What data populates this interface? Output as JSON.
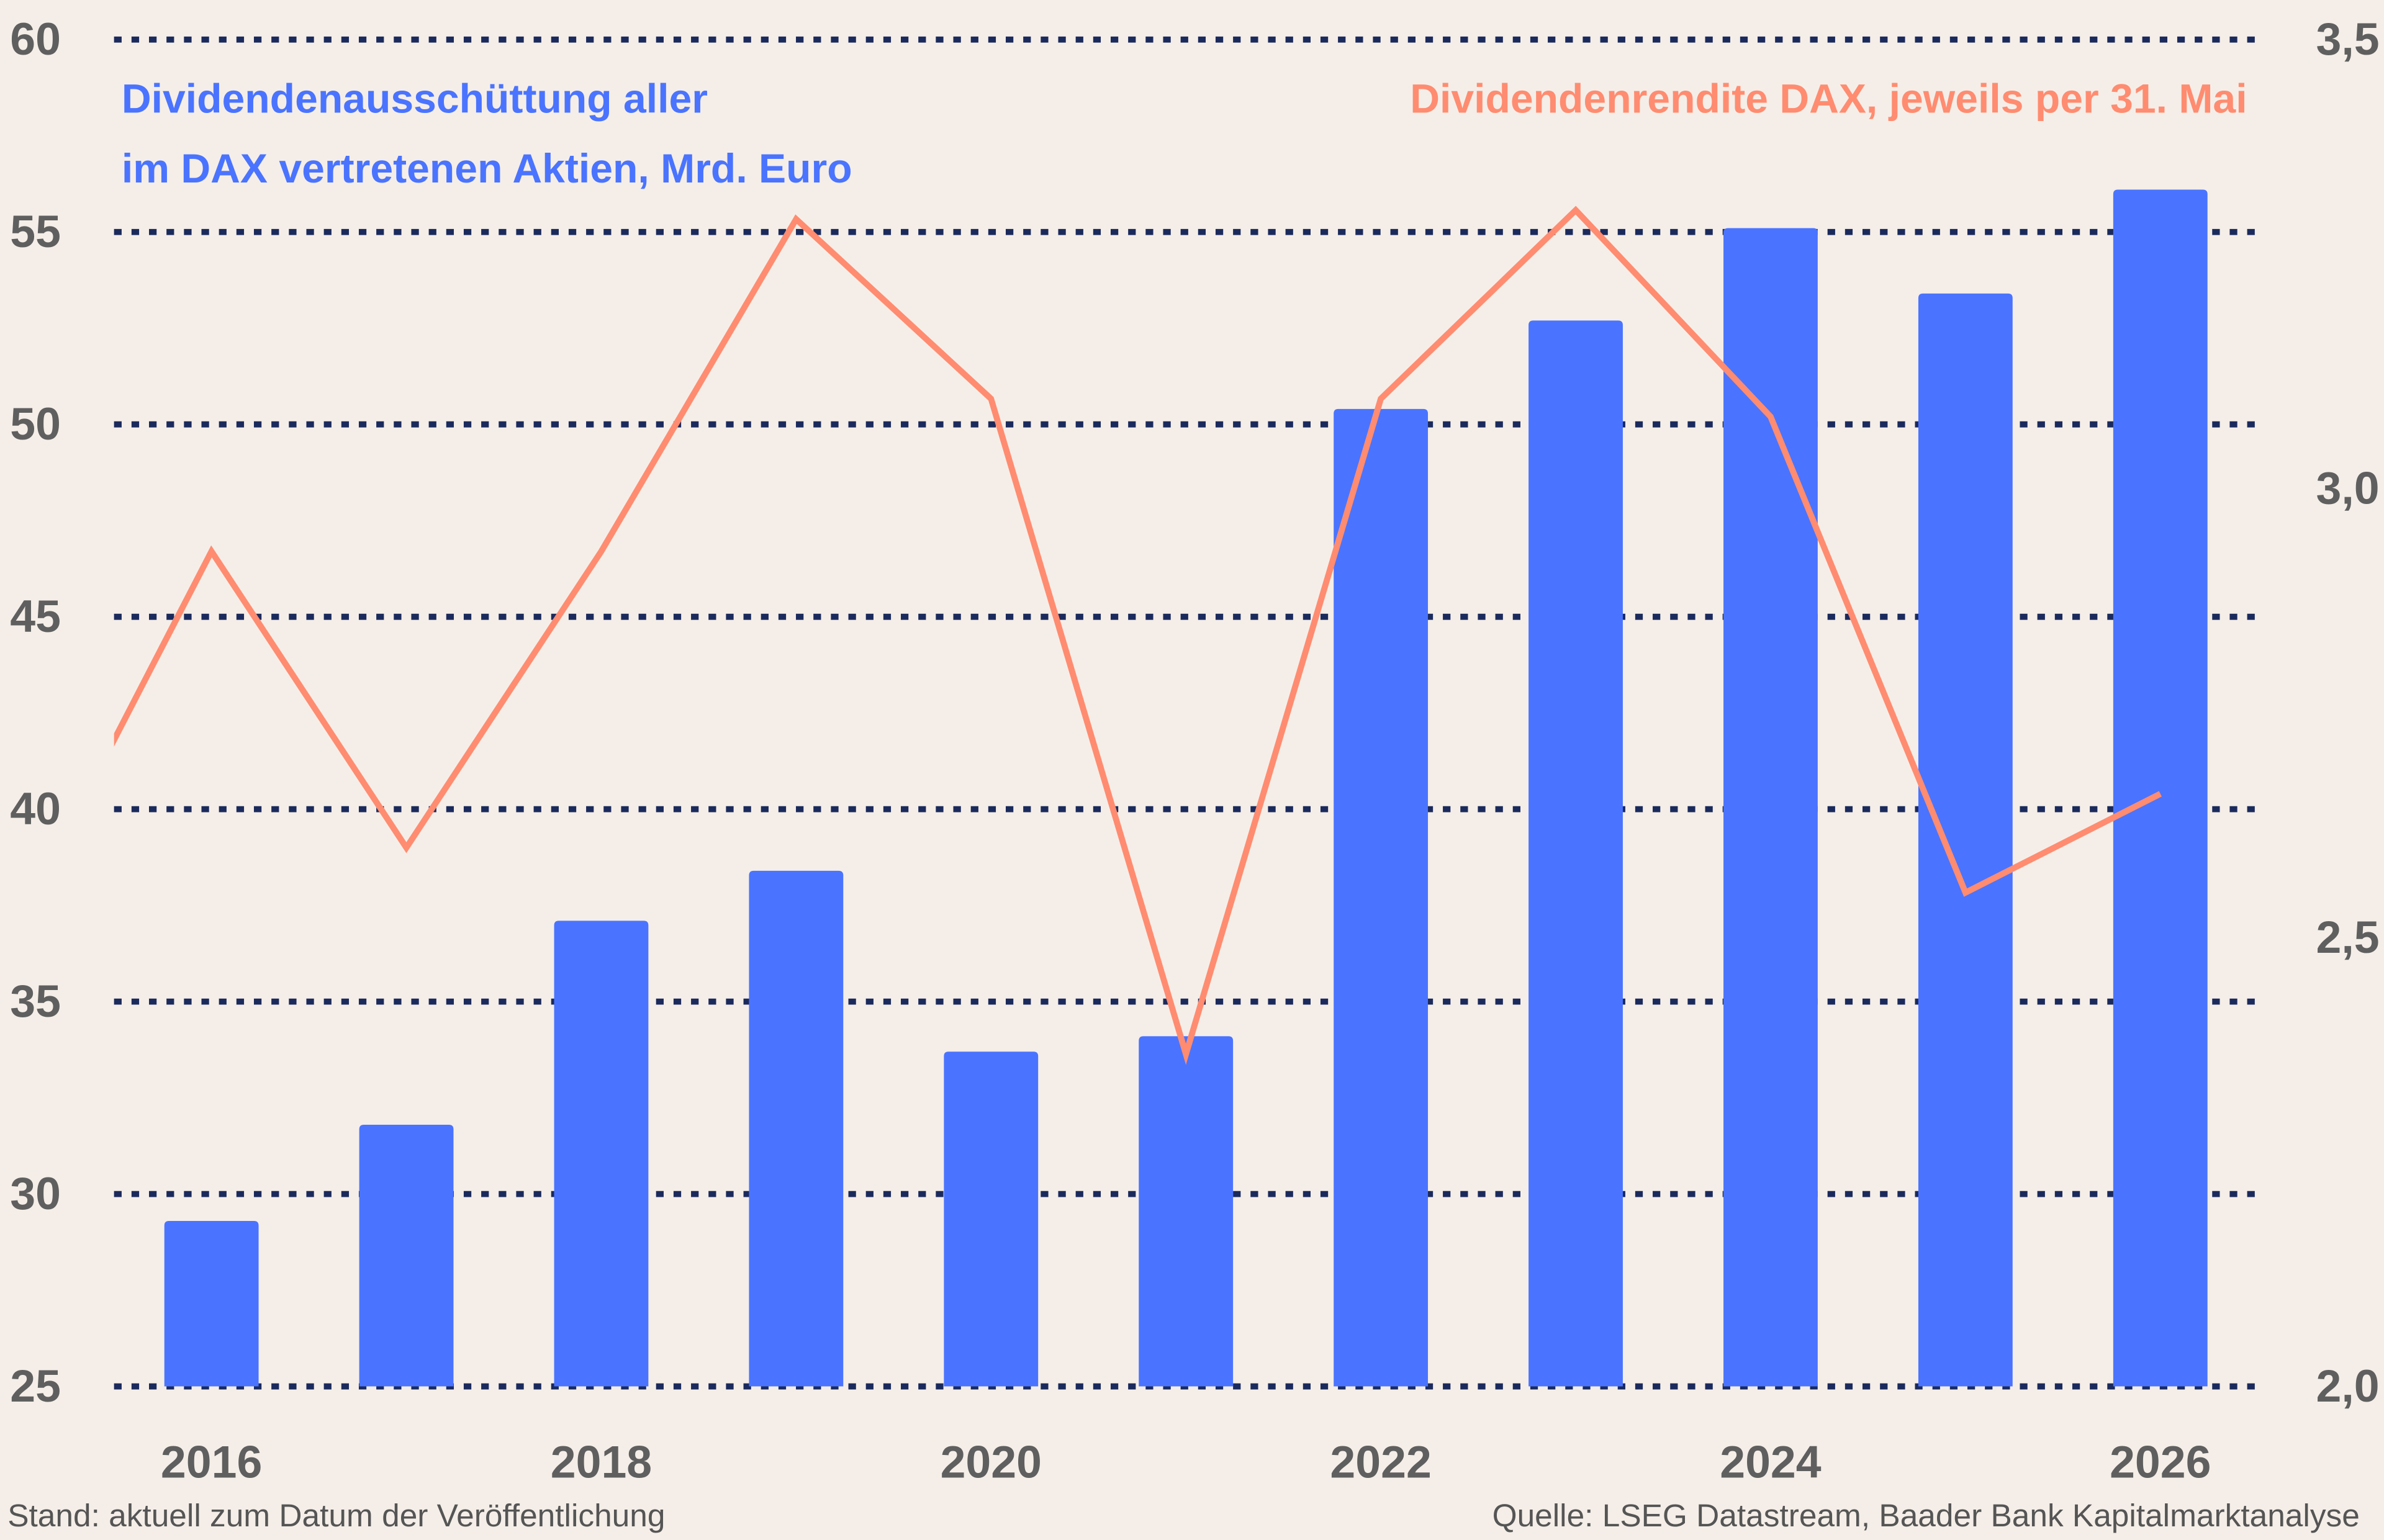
{
  "chart_data": {
    "type": "bar+line",
    "title_left": [
      "Dividendenausschüttung aller",
      "im DAX vertretenen Aktien, Mrd. Euro"
    ],
    "title_right": "Dividendenrendite DAX, jeweils per 31. Mai",
    "x": [
      2016,
      2017,
      2018,
      2019,
      2020,
      2021,
      2022,
      2023,
      2024,
      2025,
      2026
    ],
    "x_tick_labels": [
      "2016",
      "2018",
      "2020",
      "2022",
      "2024",
      "2026"
    ],
    "series": [
      {
        "type": "bar",
        "axis": "left",
        "values": [
          29.3,
          31.8,
          37.1,
          38.4,
          33.7,
          34.1,
          50.4,
          52.7,
          55.1,
          53.4,
          56.1
        ]
      },
      {
        "type": "line",
        "axis": "right",
        "x": [
          2015,
          2016,
          2017,
          2018,
          2019,
          2020,
          2021,
          2022,
          2023,
          2024,
          2025,
          2026
        ],
        "values": [
          2.51,
          2.93,
          2.6,
          2.93,
          3.3,
          3.1,
          2.37,
          3.1,
          3.31,
          3.08,
          2.55,
          2.66
        ]
      }
    ],
    "y_left": {
      "lim": [
        25,
        60
      ],
      "ticks": [
        "60",
        "55",
        "50",
        "45",
        "40",
        "35",
        "30",
        "25"
      ]
    },
    "y_right": {
      "lim": [
        2.0,
        3.5
      ],
      "ticks": [
        "3,5",
        "3,0",
        "2,5",
        "2,0"
      ]
    },
    "x_lim": [
      2015.5,
      2026.5
    ],
    "grid": "horizontal dotted",
    "colors": {
      "bars": "#4a74ff",
      "line": "#ff8c70",
      "grid": "#1b2a5c",
      "ticks": "#5f5f5f",
      "background": "#f5eee8"
    }
  },
  "footer": {
    "left": "Stand: aktuell zum Datum der Veröffentlichung",
    "right": "Quelle: LSEG Datastream, Baader Bank Kapitalmarktanalyse"
  }
}
